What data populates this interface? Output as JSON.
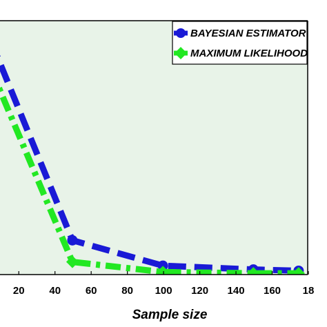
{
  "chart_data": {
    "type": "line",
    "xlabel": "Sample size",
    "ylabel": "",
    "x_ticks": [
      "20",
      "40",
      "60",
      "80",
      "100",
      "120",
      "140",
      "160",
      "18"
    ],
    "xlim": [
      10,
      180
    ],
    "ylim": [
      0,
      1
    ],
    "grid": false,
    "legend_position": "top-right",
    "background_color": "#e8f3e8",
    "series": [
      {
        "name": "BAYESIAN ESTIMATOR",
        "color": "#1a1ad6",
        "x": [
          5,
          50,
          100,
          150,
          175
        ],
        "y": [
          0.92,
          0.135,
          0.035,
          0.02,
          0.015
        ]
      },
      {
        "name": "MAXIMUM LIKELIHOOD EST",
        "color": "#22e822",
        "x": [
          5,
          50,
          100,
          150,
          175
        ],
        "y": [
          0.81,
          0.05,
          0.01,
          0.005,
          0.005
        ]
      }
    ]
  }
}
